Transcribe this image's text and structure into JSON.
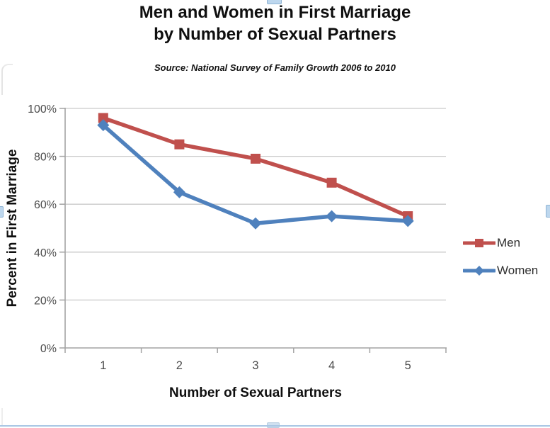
{
  "chart_data": {
    "type": "line",
    "title": "Men and Women in First Marriage by Number of Sexual Partners",
    "title_lines": [
      "Men and Women in First Marriage",
      "by Number of Sexual Partners"
    ],
    "subtitle": "Source: National Survey of Family Growth 2006 to 2010",
    "xlabel": "Number of Sexual Partners",
    "ylabel": "Percent in First Marriage",
    "categories": [
      "1",
      "2",
      "3",
      "4",
      "5"
    ],
    "series": [
      {
        "name": "Men",
        "values": [
          96,
          85,
          79,
          69,
          55
        ],
        "color": "#C0504D",
        "marker": "square"
      },
      {
        "name": "Women",
        "values": [
          93,
          65,
          52,
          55,
          53
        ],
        "color": "#4F81BD",
        "marker": "diamond"
      }
    ],
    "ylim": [
      0,
      100
    ],
    "ytick_step": 20,
    "ytick_labels": [
      "0%",
      "20%",
      "40%",
      "60%",
      "80%",
      "100%"
    ],
    "grid": true,
    "legend_position": "right"
  },
  "colors": {
    "men_series": "#C0504D",
    "women_series": "#4F81BD",
    "gridline": "#c9c9c9",
    "axis_line": "#a3a3a3",
    "tick_label": "#4d4d4d",
    "selection_handle": "#bdd7ee",
    "selection_edge": "#a9c6e4"
  }
}
